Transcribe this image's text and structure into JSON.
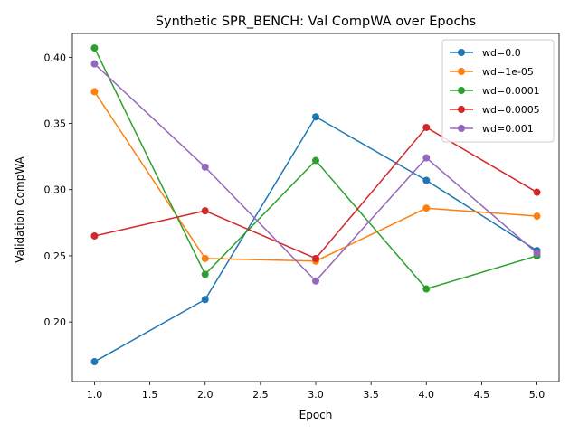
{
  "chart_data": {
    "type": "line",
    "title": "Synthetic SPR_BENCH: Val CompWA over Epochs",
    "xlabel": "Epoch",
    "ylabel": "Validation CompWA",
    "xlim": [
      0.8,
      5.2
    ],
    "ylim": [
      0.155,
      0.418
    ],
    "xticks": [
      "1.0",
      "1.5",
      "2.0",
      "2.5",
      "3.0",
      "3.5",
      "4.0",
      "4.5",
      "5.0"
    ],
    "yticks": [
      "0.20",
      "0.25",
      "0.30",
      "0.35",
      "0.40"
    ],
    "grid": false,
    "legend_position": "top-right",
    "x": [
      1,
      2,
      3,
      4,
      5
    ],
    "series": [
      {
        "name": "wd=0.0",
        "color": "#1f77b4",
        "values": [
          0.17,
          0.217,
          0.355,
          0.307,
          0.254
        ]
      },
      {
        "name": "wd=1e-05",
        "color": "#ff7f0e",
        "values": [
          0.374,
          0.248,
          0.246,
          0.286,
          0.28
        ]
      },
      {
        "name": "wd=0.0001",
        "color": "#2ca02c",
        "values": [
          0.407,
          0.236,
          0.322,
          0.225,
          0.25
        ]
      },
      {
        "name": "wd=0.0005",
        "color": "#d62728",
        "values": [
          0.265,
          0.284,
          0.248,
          0.347,
          0.298
        ]
      },
      {
        "name": "wd=0.001",
        "color": "#9467bd",
        "values": [
          0.395,
          0.317,
          0.231,
          0.324,
          0.252
        ]
      }
    ]
  }
}
